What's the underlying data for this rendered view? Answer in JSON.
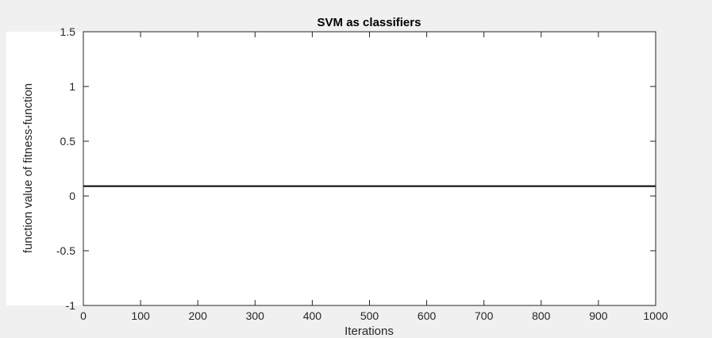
{
  "chart_data": {
    "type": "line",
    "title": "SVM as classifiers",
    "xlabel": "Iterations",
    "ylabel": "function value of fitness-function",
    "xlim": [
      0,
      1000
    ],
    "ylim": [
      -1,
      1.5
    ],
    "xticks": [
      0,
      100,
      200,
      300,
      400,
      500,
      600,
      700,
      800,
      900,
      1000
    ],
    "xtick_labels": [
      "0",
      "100",
      "200",
      "300",
      "400",
      "500",
      "600",
      "700",
      "800",
      "900",
      "1000"
    ],
    "yticks": [
      -1,
      -0.5,
      0,
      0.5,
      1,
      1.5
    ],
    "ytick_labels": [
      "-1",
      "-0.5",
      "0",
      "0.5",
      "1",
      "1.5"
    ],
    "grid": false,
    "series": [
      {
        "x": [
          0,
          1000
        ],
        "y": [
          0.09,
          0.09
        ],
        "color": "#000000"
      }
    ]
  },
  "colors": {
    "figure_background": "#f0f0f0",
    "axes_background": "#ffffff",
    "axes_edge": "#262626",
    "line": "#000000"
  }
}
